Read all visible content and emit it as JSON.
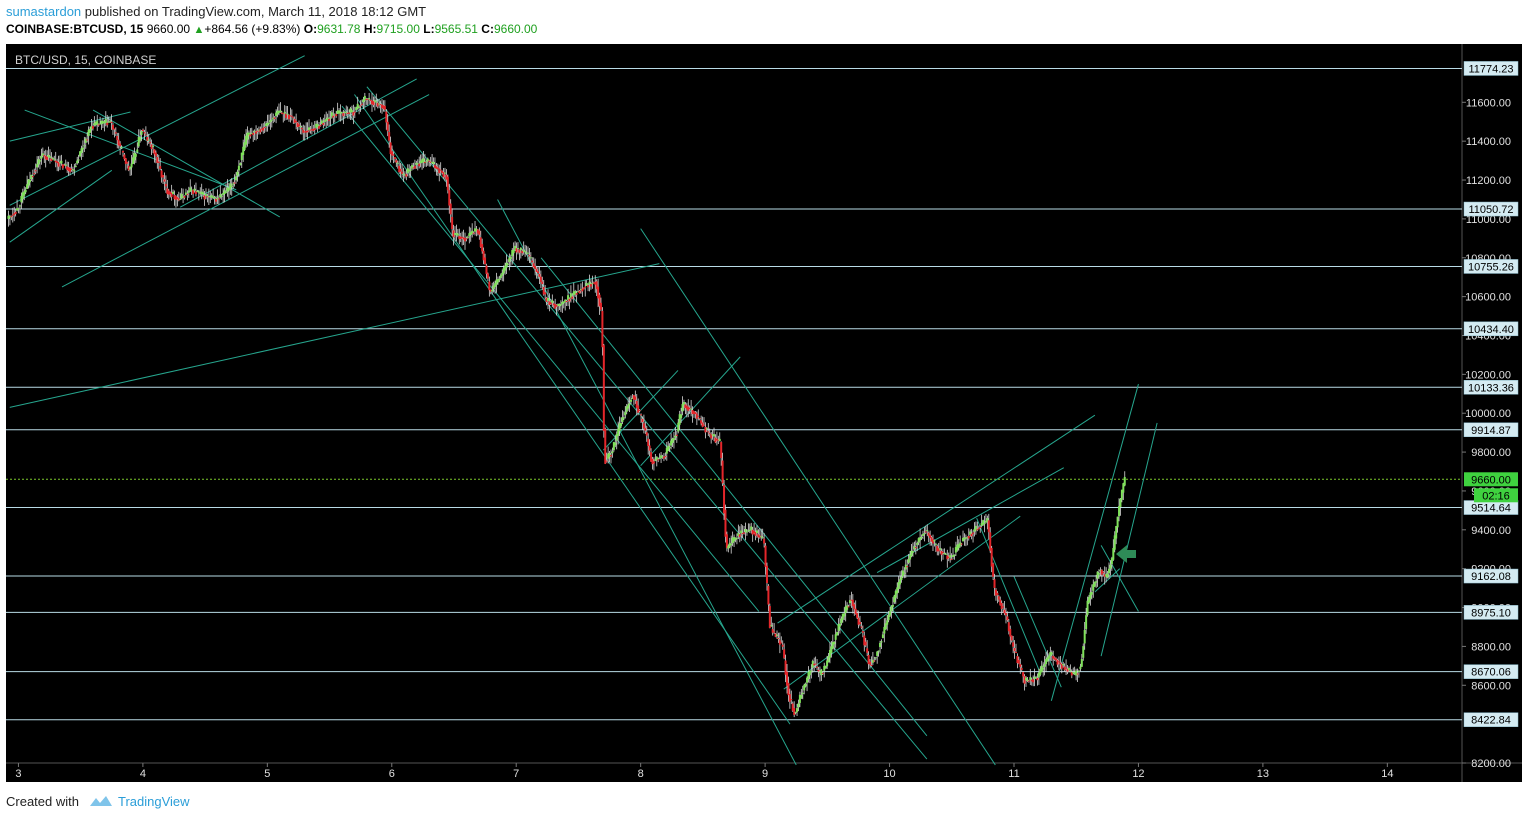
{
  "header": {
    "author": "sumastardon",
    "published_text": " published on TradingView.com, March 11, 2018 18:12 GMT",
    "symbol": "COINBASE:BTCUSD, 15",
    "last": "9660.00",
    "change": "+864.56 (+9.83%)",
    "open_label": "O:",
    "open": "9631.78",
    "high_label": "H:",
    "high": "9715.00",
    "low_label": "L:",
    "low": "9565.51",
    "close_label": "C:",
    "close": "9660.00"
  },
  "colors": {
    "background": "#000000",
    "up": "#7fe15a",
    "down": "#e4262a",
    "wick": "#d9d9d9",
    "channel": "#26a68e",
    "level": "#b9dbe6",
    "price_line": "#7cc82c",
    "arrow": "#2e8b57"
  },
  "chart_data": {
    "type": "candlestick",
    "title": "BTC/USD, 15, COINBASE",
    "x_ticks": [
      "3",
      "4",
      "5",
      "6",
      "7",
      "8",
      "9",
      "10",
      "11",
      "12",
      "13",
      "14"
    ],
    "y_ticks": [
      "11600.00",
      "11400.00",
      "11200.00",
      "11000.00",
      "10800.00",
      "10600.00",
      "10400.00",
      "10200.00",
      "10000.00",
      "9800.00",
      "9600.00",
      "9400.00",
      "9200.00",
      "9000.00",
      "8800.00",
      "8600.00",
      "8200.00"
    ],
    "ylim": [
      8200,
      11900
    ],
    "xlim": [
      2.9,
      14.6
    ],
    "horizontal_levels": [
      "11774.23",
      "11050.72",
      "10755.26",
      "10434.40",
      "10133.36",
      "9914.87",
      "9514.64",
      "9162.08",
      "8975.10",
      "8670.06",
      "8422.84"
    ],
    "current_price": "9660.00",
    "countdown": "02:16",
    "price_path": [
      [
        2.92,
        11000
      ],
      [
        3.0,
        11050
      ],
      [
        3.1,
        11200
      ],
      [
        3.2,
        11330
      ],
      [
        3.3,
        11300
      ],
      [
        3.45,
        11250
      ],
      [
        3.5,
        11330
      ],
      [
        3.6,
        11480
      ],
      [
        3.75,
        11500
      ],
      [
        3.9,
        11250
      ],
      [
        3.95,
        11330
      ],
      [
        4.0,
        11460
      ],
      [
        4.1,
        11350
      ],
      [
        4.2,
        11150
      ],
      [
        4.3,
        11100
      ],
      [
        4.4,
        11150
      ],
      [
        4.5,
        11120
      ],
      [
        4.6,
        11100
      ],
      [
        4.7,
        11150
      ],
      [
        4.75,
        11200
      ],
      [
        4.85,
        11430
      ],
      [
        5.0,
        11480
      ],
      [
        5.1,
        11550
      ],
      [
        5.2,
        11530
      ],
      [
        5.3,
        11450
      ],
      [
        5.4,
        11470
      ],
      [
        5.55,
        11540
      ],
      [
        5.7,
        11550
      ],
      [
        5.8,
        11620
      ],
      [
        5.95,
        11580
      ],
      [
        6.0,
        11350
      ],
      [
        6.1,
        11220
      ],
      [
        6.2,
        11280
      ],
      [
        6.3,
        11300
      ],
      [
        6.4,
        11250
      ],
      [
        6.45,
        11220
      ],
      [
        6.5,
        10920
      ],
      [
        6.6,
        10900
      ],
      [
        6.7,
        10950
      ],
      [
        6.75,
        10800
      ],
      [
        6.8,
        10620
      ],
      [
        6.9,
        10720
      ],
      [
        7.0,
        10850
      ],
      [
        7.1,
        10820
      ],
      [
        7.2,
        10700
      ],
      [
        7.25,
        10580
      ],
      [
        7.35,
        10550
      ],
      [
        7.45,
        10600
      ],
      [
        7.55,
        10650
      ],
      [
        7.65,
        10680
      ],
      [
        7.7,
        10500
      ],
      [
        7.72,
        9750
      ],
      [
        7.78,
        9800
      ],
      [
        7.85,
        9950
      ],
      [
        7.95,
        10100
      ],
      [
        8.05,
        9900
      ],
      [
        8.1,
        9750
      ],
      [
        8.2,
        9780
      ],
      [
        8.3,
        9900
      ],
      [
        8.35,
        10050
      ],
      [
        8.45,
        10000
      ],
      [
        8.55,
        9900
      ],
      [
        8.65,
        9850
      ],
      [
        8.7,
        9300
      ],
      [
        8.8,
        9380
      ],
      [
        8.9,
        9400
      ],
      [
        9.0,
        9350
      ],
      [
        9.05,
        8900
      ],
      [
        9.15,
        8800
      ],
      [
        9.2,
        8550
      ],
      [
        9.25,
        8450
      ],
      [
        9.3,
        8550
      ],
      [
        9.4,
        8720
      ],
      [
        9.45,
        8650
      ],
      [
        9.5,
        8700
      ],
      [
        9.6,
        8900
      ],
      [
        9.7,
        9050
      ],
      [
        9.8,
        8850
      ],
      [
        9.85,
        8700
      ],
      [
        9.9,
        8750
      ],
      [
        10.0,
        8950
      ],
      [
        10.1,
        9150
      ],
      [
        10.2,
        9300
      ],
      [
        10.3,
        9400
      ],
      [
        10.4,
        9300
      ],
      [
        10.5,
        9250
      ],
      [
        10.6,
        9350
      ],
      [
        10.7,
        9400
      ],
      [
        10.8,
        9450
      ],
      [
        10.85,
        9100
      ],
      [
        10.95,
        8950
      ],
      [
        11.0,
        8800
      ],
      [
        11.1,
        8620
      ],
      [
        11.2,
        8640
      ],
      [
        11.3,
        8760
      ],
      [
        11.4,
        8700
      ],
      [
        11.5,
        8650
      ],
      [
        11.55,
        8700
      ],
      [
        11.6,
        9020
      ],
      [
        11.7,
        9200
      ],
      [
        11.75,
        9150
      ],
      [
        11.8,
        9250
      ],
      [
        11.85,
        9500
      ],
      [
        11.9,
        9660
      ]
    ],
    "channels": [
      [
        [
          2.93,
          11400
        ],
        [
          3.9,
          11550
        ]
      ],
      [
        [
          2.93,
          11070
        ],
        [
          5.3,
          11840
        ]
      ],
      [
        [
          2.93,
          10880
        ],
        [
          3.75,
          11250
        ]
      ],
      [
        [
          3.05,
          11560
        ],
        [
          4.75,
          11150
        ]
      ],
      [
        [
          3.6,
          11560
        ],
        [
          5.1,
          11010
        ]
      ],
      [
        [
          3.35,
          10650
        ],
        [
          6.3,
          11640
        ]
      ],
      [
        [
          4.3,
          11060
        ],
        [
          6.2,
          11720
        ]
      ],
      [
        [
          5.6,
          11580
        ],
        [
          8.95,
          8980
        ]
      ],
      [
        [
          5.7,
          11640
        ],
        [
          9.2,
          8400
        ]
      ],
      [
        [
          5.8,
          11680
        ],
        [
          10.3,
          8220
        ]
      ],
      [
        [
          6.85,
          11100
        ],
        [
          9.25,
          8190
        ]
      ],
      [
        [
          7.2,
          10800
        ],
        [
          10.3,
          8340
        ]
      ],
      [
        [
          8.0,
          10950
        ],
        [
          10.85,
          8190
        ]
      ],
      [
        [
          2.93,
          10030
        ],
        [
          8.15,
          10770
        ]
      ],
      [
        [
          7.7,
          9810
        ],
        [
          8.3,
          10220
        ]
      ],
      [
        [
          8.0,
          9730
        ],
        [
          8.8,
          10290
        ]
      ],
      [
        [
          9.1,
          8920
        ],
        [
          11.65,
          9990
        ]
      ],
      [
        [
          9.15,
          8580
        ],
        [
          11.05,
          9470
        ]
      ],
      [
        [
          9.9,
          9180
        ],
        [
          11.4,
          9720
        ]
      ],
      [
        [
          10.7,
          9460
        ],
        [
          11.2,
          8680
        ]
      ],
      [
        [
          11.0,
          9160
        ],
        [
          11.38,
          8590
        ]
      ],
      [
        [
          11.3,
          8520
        ],
        [
          12.0,
          10150
        ]
      ],
      [
        [
          11.7,
          8750
        ],
        [
          12.15,
          9950
        ]
      ],
      [
        [
          11.7,
          9320
        ],
        [
          12.0,
          8980
        ]
      ],
      [
        [
          11.65,
          9080
        ],
        [
          11.85,
          9200
        ]
      ]
    ]
  },
  "footer": {
    "created_with": "Created with",
    "brand": "TradingView"
  }
}
